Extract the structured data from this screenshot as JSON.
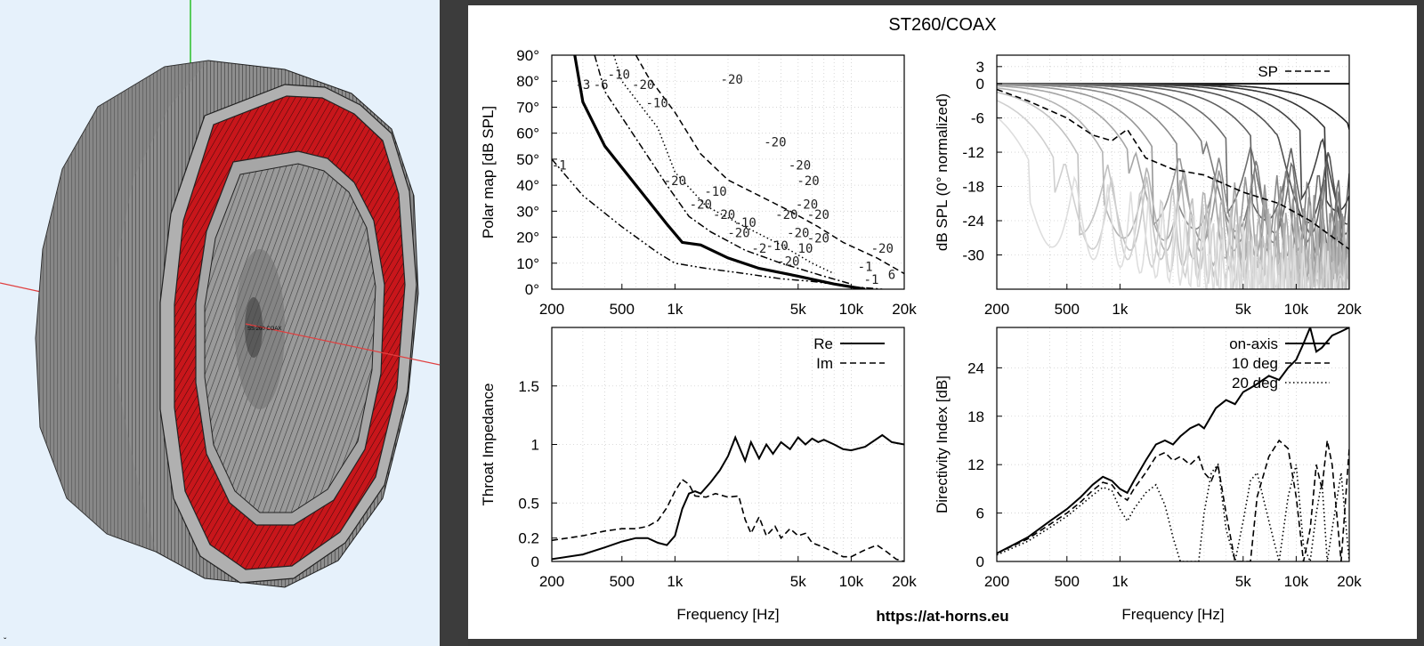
{
  "viewport": {
    "model_label": "SS 260 COAX",
    "corner_mark": "ˇ"
  },
  "report": {
    "title": "ST260/COAX",
    "url": "https://at-horns.eu"
  },
  "chart_data": [
    {
      "type": "heatmap",
      "name": "polar-map",
      "ylabel": "Polar map [dB SPL]",
      "xlabel": "",
      "x_scale": "log",
      "xlim": [
        200,
        20000
      ],
      "ylim": [
        0,
        90
      ],
      "x_ticks": [
        "200",
        "500",
        "1k",
        "5k",
        "10k",
        "20k"
      ],
      "x_tick_values": [
        200,
        500,
        1000,
        5000,
        10000,
        20000
      ],
      "y_ticks": [
        "0°",
        "10°",
        "20°",
        "30°",
        "40°",
        "50°",
        "60°",
        "70°",
        "80°",
        "90°"
      ],
      "y_tick_values": [
        0,
        10,
        20,
        30,
        40,
        50,
        60,
        70,
        80,
        90
      ],
      "contours": [
        {
          "level": "-1",
          "style": "dash-dot-dot",
          "x": [
            200,
            300,
            500,
            800,
            1000,
            1500,
            2500,
            4000,
            6000,
            10000,
            15000
          ],
          "y": [
            50,
            36,
            24,
            14,
            10,
            8,
            6,
            4,
            3,
            1,
            0
          ]
        },
        {
          "level": "-3",
          "style": "solid-bold",
          "x": [
            270,
            300,
            400,
            600,
            900,
            1100,
            1400,
            2000,
            3000,
            5000,
            8000,
            12000
          ],
          "y": [
            90,
            72,
            55,
            40,
            25,
            18,
            17,
            12,
            8,
            5,
            2,
            0
          ]
        },
        {
          "level": "-6",
          "style": "dash-dot",
          "x": [
            350,
            400,
            600,
            900,
            1200,
            1600,
            2500,
            4000,
            7000,
            10000
          ],
          "y": [
            90,
            76,
            58,
            40,
            28,
            22,
            15,
            10,
            5,
            2
          ]
        },
        {
          "level": "-10",
          "style": "dotted",
          "x": [
            450,
            500,
            800,
            1000,
            1500,
            2500,
            4000,
            6000,
            8000
          ],
          "y": [
            90,
            80,
            62,
            45,
            32,
            24,
            17,
            10,
            6
          ]
        },
        {
          "level": "-20",
          "style": "dashed",
          "x": [
            600,
            700,
            1000,
            1400,
            2000,
            3000,
            4500,
            6500,
            9000,
            14000,
            20000
          ],
          "y": [
            90,
            82,
            68,
            52,
            42,
            36,
            30,
            24,
            18,
            12,
            6
          ]
        }
      ],
      "contour_labels": [
        {
          "text": "-1",
          "x": 220,
          "y": 46
        },
        {
          "text": "-3",
          "x": 300,
          "y": 77
        },
        {
          "text": "-6",
          "x": 380,
          "y": 77
        },
        {
          "text": "-10",
          "x": 480,
          "y": 81
        },
        {
          "text": "-20",
          "x": 660,
          "y": 77
        },
        {
          "text": "-10",
          "x": 790,
          "y": 70
        },
        {
          "text": "-20",
          "x": 2100,
          "y": 79
        },
        {
          "text": "-20",
          "x": 3700,
          "y": 55
        },
        {
          "text": "-20",
          "x": 5100,
          "y": 46
        },
        {
          "text": "-20",
          "x": 5700,
          "y": 40
        },
        {
          "text": "-20",
          "x": 1000,
          "y": 40
        },
        {
          "text": "-10",
          "x": 1700,
          "y": 36
        },
        {
          "text": "-20",
          "x": 1400,
          "y": 31
        },
        {
          "text": "-20",
          "x": 1900,
          "y": 27
        },
        {
          "text": "-10",
          "x": 2500,
          "y": 24
        },
        {
          "text": "-20",
          "x": 2300,
          "y": 20
        },
        {
          "text": "-20",
          "x": 4300,
          "y": 27
        },
        {
          "text": "-20",
          "x": 5600,
          "y": 31
        },
        {
          "text": "-20",
          "x": 6500,
          "y": 27
        },
        {
          "text": "-20",
          "x": 5000,
          "y": 20
        },
        {
          "text": "-20",
          "x": 6500,
          "y": 18
        },
        {
          "text": "-2",
          "x": 3000,
          "y": 14
        },
        {
          "text": "-10",
          "x": 3800,
          "y": 15
        },
        {
          "text": "10",
          "x": 5500,
          "y": 14
        },
        {
          "text": "-20",
          "x": 4400,
          "y": 9
        },
        {
          "text": "-20",
          "x": 15000,
          "y": 14
        },
        {
          "text": "-1",
          "x": 12000,
          "y": 7
        },
        {
          "text": "-1",
          "x": 13000,
          "y": 2
        },
        {
          "text": "6",
          "x": 17000,
          "y": 4
        }
      ]
    },
    {
      "type": "line",
      "name": "normalized-spl",
      "ylabel": "dB SPL (0° normalized)",
      "xlabel": "",
      "x_scale": "log",
      "xlim": [
        200,
        20000
      ],
      "ylim": [
        -36,
        5
      ],
      "x_ticks": [
        "200",
        "500",
        "1k",
        "5k",
        "10k",
        "20k"
      ],
      "x_tick_values": [
        200,
        500,
        1000,
        5000,
        10000,
        20000
      ],
      "y_ticks": [
        "3",
        "0",
        "-6",
        "-12",
        "-18",
        "-24",
        "-30"
      ],
      "y_tick_values": [
        3,
        0,
        -6,
        -12,
        -18,
        -24,
        -30
      ],
      "legend": [
        {
          "label": "SP",
          "style": "dashed"
        }
      ],
      "series": [
        {
          "name": "SP",
          "style": "dashed",
          "x": [
            200,
            300,
            500,
            700,
            900,
            1100,
            1400,
            2000,
            3000,
            5000,
            8000,
            12000,
            20000
          ],
          "y": [
            -1,
            -3,
            -6,
            -9,
            -10,
            -8,
            -13,
            -15,
            -16,
            -19,
            -21,
            -24,
            -29
          ]
        }
      ],
      "fan_curves": 14
    },
    {
      "type": "line",
      "name": "throat-impedance",
      "ylabel": "Throat Impedance",
      "xlabel": "Frequency [Hz]",
      "x_scale": "log",
      "xlim": [
        200,
        20000
      ],
      "ylim": [
        0,
        2
      ],
      "x_ticks": [
        "200",
        "500",
        "1k",
        "5k",
        "10k",
        "20k"
      ],
      "x_tick_values": [
        200,
        500,
        1000,
        5000,
        10000,
        20000
      ],
      "y_ticks": [
        "0",
        "0.2",
        "0.5",
        "1",
        "1.5"
      ],
      "y_tick_values": [
        0,
        0.2,
        0.5,
        1,
        1.5
      ],
      "legend": [
        {
          "label": "Re",
          "style": "solid"
        },
        {
          "label": "Im",
          "style": "dashed"
        }
      ],
      "series": [
        {
          "name": "Re",
          "style": "solid",
          "x": [
            200,
            300,
            400,
            500,
            600,
            700,
            800,
            900,
            1000,
            1100,
            1200,
            1300,
            1400,
            1600,
            1800,
            2000,
            2200,
            2500,
            2700,
            3000,
            3300,
            3600,
            4000,
            4500,
            5000,
            5500,
            6000,
            6500,
            7000,
            8000,
            9000,
            10000,
            12000,
            15000,
            17000,
            20000
          ],
          "y": [
            0.02,
            0.06,
            0.12,
            0.17,
            0.2,
            0.2,
            0.16,
            0.14,
            0.22,
            0.45,
            0.58,
            0.6,
            0.58,
            0.68,
            0.78,
            0.9,
            1.06,
            0.86,
            1.02,
            0.88,
            1.0,
            0.92,
            1.02,
            0.96,
            1.06,
            1.0,
            1.05,
            1.02,
            1.04,
            1.0,
            0.96,
            0.95,
            0.98,
            1.08,
            1.02,
            1.0
          ]
        },
        {
          "name": "Im",
          "style": "dashed",
          "x": [
            200,
            300,
            400,
            500,
            600,
            700,
            800,
            900,
            1000,
            1100,
            1200,
            1300,
            1500,
            1700,
            2000,
            2300,
            2500,
            2700,
            3000,
            3300,
            3700,
            4000,
            4500,
            5000,
            5500,
            6000,
            7000,
            8000,
            9000,
            10000,
            12000,
            14000,
            16000,
            18000,
            20000
          ],
          "y": [
            0.18,
            0.22,
            0.26,
            0.28,
            0.28,
            0.3,
            0.35,
            0.46,
            0.6,
            0.7,
            0.66,
            0.56,
            0.55,
            0.58,
            0.55,
            0.56,
            0.36,
            0.24,
            0.38,
            0.22,
            0.3,
            0.2,
            0.28,
            0.22,
            0.24,
            0.16,
            0.12,
            0.08,
            0.04,
            0.04,
            0.1,
            0.14,
            0.08,
            0.02,
            0.0
          ]
        }
      ]
    },
    {
      "type": "line",
      "name": "directivity-index",
      "ylabel": "Directivity Index [dB]",
      "xlabel": "Frequency [Hz]",
      "x_scale": "log",
      "xlim": [
        200,
        20000
      ],
      "ylim": [
        0,
        29
      ],
      "x_ticks": [
        "200",
        "500",
        "1k",
        "5k",
        "10k",
        "20k"
      ],
      "x_tick_values": [
        200,
        500,
        1000,
        5000,
        10000,
        20000
      ],
      "y_ticks": [
        "0",
        "6",
        "12",
        "18",
        "24"
      ],
      "y_tick_values": [
        0,
        6,
        12,
        18,
        24
      ],
      "legend": [
        {
          "label": "on-axis",
          "style": "solid"
        },
        {
          "label": "10 deg",
          "style": "dashed"
        },
        {
          "label": "20 deg",
          "style": "dotted"
        }
      ],
      "series": [
        {
          "name": "on-axis",
          "style": "solid",
          "x": [
            200,
            300,
            400,
            500,
            600,
            700,
            800,
            900,
            1000,
            1100,
            1200,
            1400,
            1600,
            1800,
            2000,
            2200,
            2500,
            2800,
            3000,
            3500,
            4000,
            4500,
            5000,
            5500,
            6000,
            7000,
            8000,
            9000,
            10000,
            11000,
            12000,
            13000,
            14000,
            16000,
            18000,
            20000
          ],
          "y": [
            1,
            3,
            5,
            6.5,
            8,
            9.5,
            10.5,
            10,
            9,
            8.5,
            10,
            12.5,
            14.5,
            15,
            14.5,
            15.5,
            16.5,
            17,
            16.5,
            19,
            20,
            19.5,
            21,
            21.5,
            22,
            23,
            22.5,
            24,
            25,
            27,
            29,
            26,
            26.5,
            28,
            28.5,
            29
          ]
        },
        {
          "name": "10 deg",
          "style": "dashed",
          "x": [
            200,
            300,
            400,
            500,
            600,
            700,
            800,
            900,
            1000,
            1100,
            1200,
            1400,
            1600,
            1800,
            2000,
            2200,
            2500,
            2800,
            3000,
            3300,
            3600,
            4000,
            4500,
            5000,
            5500,
            6000,
            7000,
            8000,
            9000,
            10000,
            11000,
            12000,
            13000,
            14000,
            15000,
            16000,
            18000,
            20000
          ],
          "y": [
            1,
            2.8,
            4.6,
            6,
            7.4,
            8.8,
            9.8,
            9.5,
            8.2,
            7.6,
            9,
            11,
            13,
            13.5,
            12.5,
            13,
            12,
            13,
            11,
            10,
            12,
            6,
            0,
            0,
            0,
            8,
            13,
            15,
            14,
            8,
            0,
            4,
            12,
            9,
            15,
            12,
            0,
            14
          ]
        },
        {
          "name": "20 deg",
          "style": "dotted",
          "x": [
            200,
            300,
            400,
            500,
            600,
            700,
            800,
            900,
            1000,
            1100,
            1200,
            1400,
            1600,
            1800,
            2000,
            2200,
            2500,
            2800,
            3000,
            3300,
            3600,
            4000,
            4500,
            5000,
            5500,
            6000,
            7000,
            8000,
            9000,
            10000,
            11000,
            12000,
            13000,
            14000,
            15000,
            16000,
            18000,
            20000
          ],
          "y": [
            0.8,
            2.5,
            4.2,
            5.6,
            7,
            8.2,
            9.2,
            8.8,
            6.5,
            5,
            6.5,
            8.5,
            9.5,
            7,
            3,
            0,
            0,
            0,
            6,
            11,
            12,
            4,
            0,
            5,
            10,
            11,
            5,
            0,
            8,
            12,
            2,
            0,
            6,
            10,
            0,
            4,
            11,
            0
          ]
        }
      ]
    }
  ]
}
